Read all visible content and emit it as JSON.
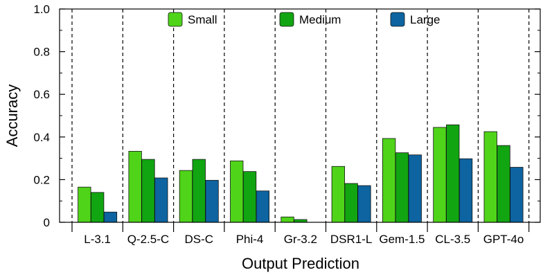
{
  "chart_data": {
    "type": "bar",
    "title": "",
    "xlabel": "Output Prediction",
    "ylabel": "Accuracy",
    "ylim": [
      0,
      1.0
    ],
    "yticks": [
      "0",
      "0.2",
      "0.4",
      "0.6",
      "0.8",
      "1.0"
    ],
    "grid": false,
    "legend_position": "top-center",
    "categories": [
      "L-3.1",
      "Q-2.5-C",
      "DS-C",
      "Phi-4",
      "Gr-3.2",
      "DSR1-L",
      "Gem-1.5",
      "CL-3.5",
      "GPT-4o"
    ],
    "series": [
      {
        "name": "Small",
        "color": "#4fd41a",
        "values": [
          0.165,
          0.333,
          0.243,
          0.288,
          0.025,
          0.262,
          0.393,
          0.445,
          0.425
        ]
      },
      {
        "name": "Medium",
        "color": "#12a512",
        "values": [
          0.14,
          0.295,
          0.295,
          0.238,
          0.013,
          0.182,
          0.326,
          0.457,
          0.36
        ]
      },
      {
        "name": "Large",
        "color": "#0d64a0",
        "values": [
          0.048,
          0.208,
          0.197,
          0.147,
          0.0,
          0.172,
          0.316,
          0.298,
          0.258
        ]
      }
    ]
  }
}
